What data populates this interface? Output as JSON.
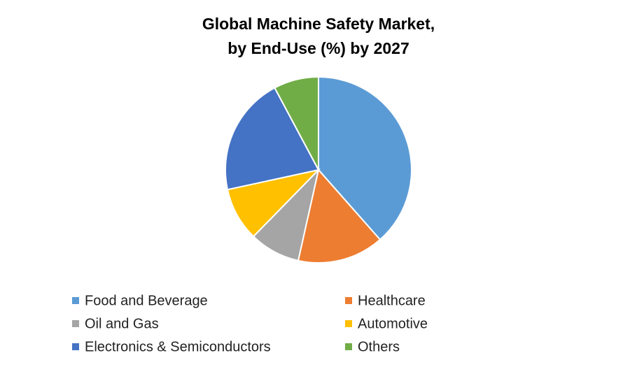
{
  "chart_data": {
    "type": "pie",
    "title": [
      "Global Machine Safety Market,",
      "by End-Use (%) by 2027"
    ],
    "categories": [
      "Food and Beverage",
      "Healthcare",
      "Oil and Gas",
      "Automotive",
      "Electronics & Semiconductors",
      "Others"
    ],
    "values": [
      38.5,
      15,
      8.8,
      9.3,
      20.6,
      7.8
    ],
    "colors": [
      "#5b9bd5",
      "#ed7d31",
      "#a5a5a5",
      "#ffc000",
      "#4472c4",
      "#70ad47"
    ],
    "legend": "bottom"
  }
}
